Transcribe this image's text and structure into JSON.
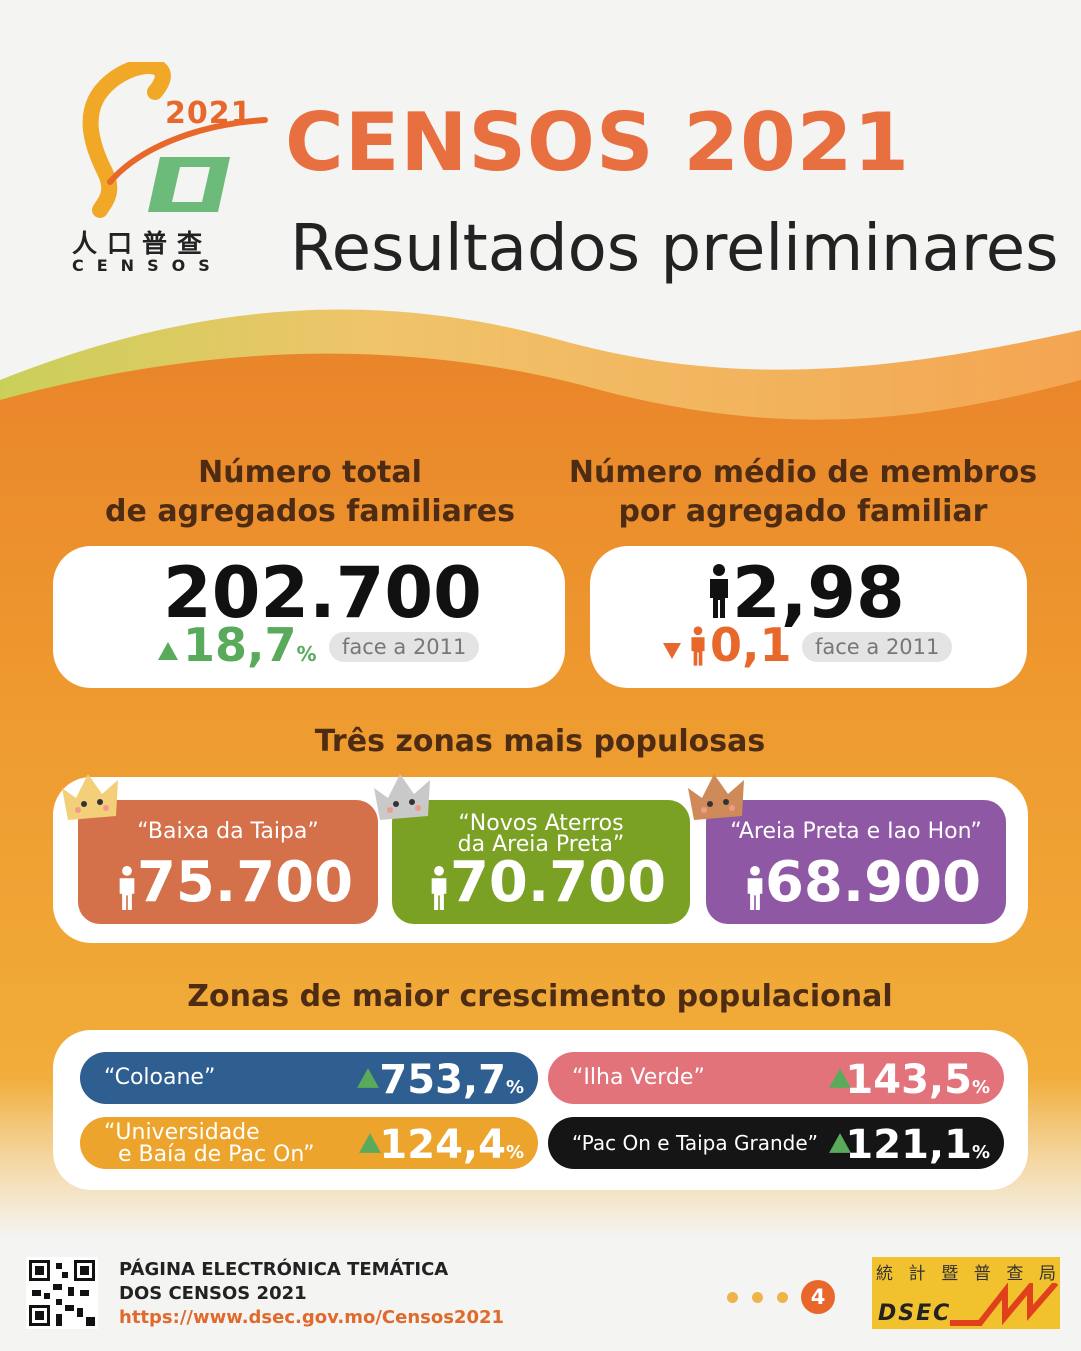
{
  "colors": {
    "orange": "#e87040",
    "dark_brown": "#4e2c14",
    "green": "#5aaa5c",
    "zone1": "#d4704a",
    "zone2": "#7aa024",
    "zone3": "#8e58a4",
    "coloane": "#2f5e91",
    "ilha_verde": "#e2737a",
    "universidade": "#eca42c",
    "pac_on": "#151515"
  },
  "logo": {
    "year": "2021",
    "chinese": "人口普查",
    "english": "CENSOS"
  },
  "header": {
    "title": "CENSOS 2021",
    "subtitle": "Resultados preliminares"
  },
  "households": {
    "heading_line1": "Número total",
    "heading_line2": "de agregados familiares",
    "value": "202.700",
    "change": "18,7",
    "unit": "%",
    "direction": "up",
    "comparison": "face a 2011"
  },
  "members": {
    "heading_line1": "Número médio de membros",
    "heading_line2": "por agregado familiar",
    "value": "2,98",
    "change": "0,1",
    "direction": "down",
    "comparison": "face a 2011"
  },
  "populous_zones": {
    "heading": "Três zonas mais populosas",
    "zones": [
      {
        "name_line1": "“Baixa da Taipa”",
        "name_line2": "",
        "value": "75.700",
        "color": "#d4704a",
        "rank": 1
      },
      {
        "name_line1": "“Novos Aterros",
        "name_line2": "da Areia Preta”",
        "value": "70.700",
        "color": "#7aa024",
        "rank": 2
      },
      {
        "name_line1": "“Areia Preta e Iao Hon”",
        "name_line2": "",
        "value": "68.900",
        "color": "#8e58a4",
        "rank": 3
      }
    ]
  },
  "growth_zones": {
    "heading": "Zonas de maior crescimento populacional",
    "zones": [
      {
        "name_line1": "“Coloane”",
        "name_line2": "",
        "value": "753,7",
        "unit": "%"
      },
      {
        "name_line1": "“Ilha Verde”",
        "name_line2": "",
        "value": "143,5",
        "unit": "%"
      },
      {
        "name_line1": "“Universidade",
        "name_line2": "e Baía de Pac On”",
        "value": "124,4",
        "unit": "%"
      },
      {
        "name_line1": "“Pac On e Taipa Grande”",
        "name_line2": "",
        "value": "121,1",
        "unit": "%"
      }
    ]
  },
  "footer": {
    "title_line1": "PÁGINA ELECTRÓNICA TEMÁTICA",
    "title_line2": "DOS CENSOS 2021",
    "url": "https://www.dsec.gov.mo/Censos2021",
    "page_number": "4",
    "dsec_chinese": [
      "統",
      "計",
      "暨",
      "普",
      "查",
      "局"
    ],
    "dsec_english": "DSEC"
  }
}
